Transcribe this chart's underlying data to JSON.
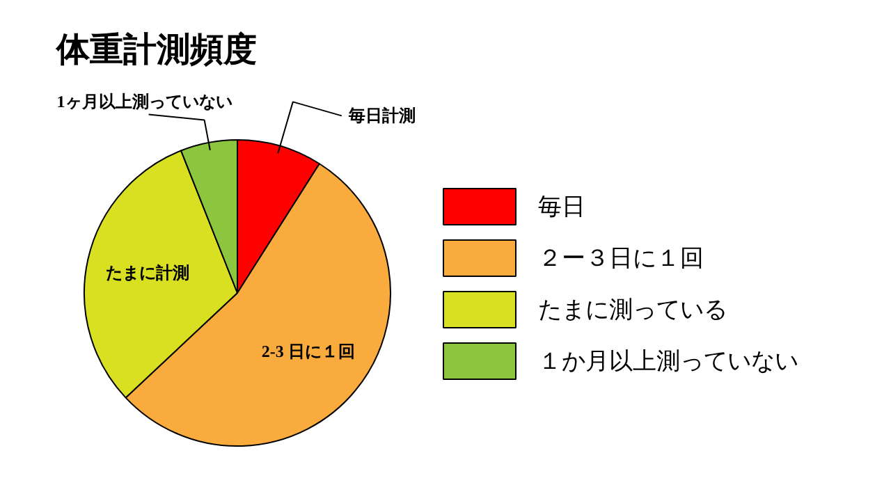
{
  "chart_data": {
    "type": "pie",
    "title": "体重計測頻度",
    "categories": [
      "毎日",
      "２ー３日に１回",
      "たまに測っている",
      "１か月以上測っていない"
    ],
    "values": [
      9,
      54,
      31,
      6
    ],
    "colors": [
      "#ff0000",
      "#f9ac3d",
      "#d9df21",
      "#8cc63f"
    ],
    "annotations": [
      {
        "text": "毎日計測",
        "x": "毎日"
      },
      {
        "text": "2-3 日に１回",
        "x": "２ー３日に１回"
      },
      {
        "text": "たまに計測",
        "x": "たまに測っている"
      },
      {
        "text": "1ヶ月以上測っていない",
        "x": "１か月以上測っていない"
      }
    ],
    "legend": "right"
  }
}
